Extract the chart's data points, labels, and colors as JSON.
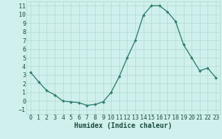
{
  "x": [
    0,
    1,
    2,
    3,
    4,
    5,
    6,
    7,
    8,
    9,
    10,
    11,
    12,
    13,
    14,
    15,
    16,
    17,
    18,
    19,
    20,
    21,
    22,
    23
  ],
  "y": [
    3.3,
    2.2,
    1.2,
    0.7,
    0.0,
    -0.1,
    -0.2,
    -0.5,
    -0.4,
    -0.1,
    1.0,
    2.8,
    5.0,
    7.0,
    9.9,
    11.0,
    11.0,
    10.3,
    9.2,
    6.5,
    5.0,
    3.5,
    3.8,
    2.7
  ],
  "line_color": "#2e7d6e",
  "marker": "D",
  "markersize": 2.0,
  "linewidth": 1.0,
  "bg_color": "#cff0ec",
  "grid_color": "#aed8d2",
  "xlabel": "Humidex (Indice chaleur)",
  "xlabel_fontsize": 7,
  "xlabel_color": "#1a4a40",
  "tick_fontsize": 6,
  "tick_color": "#1a4a40",
  "ylim": [
    -1.5,
    11.5
  ],
  "xlim": [
    -0.5,
    23.5
  ],
  "yticks": [
    -1,
    0,
    1,
    2,
    3,
    4,
    5,
    6,
    7,
    8,
    9,
    10,
    11
  ],
  "xticks": [
    0,
    1,
    2,
    3,
    4,
    5,
    6,
    7,
    8,
    9,
    10,
    11,
    12,
    13,
    14,
    15,
    16,
    17,
    18,
    19,
    20,
    21,
    22,
    23
  ]
}
